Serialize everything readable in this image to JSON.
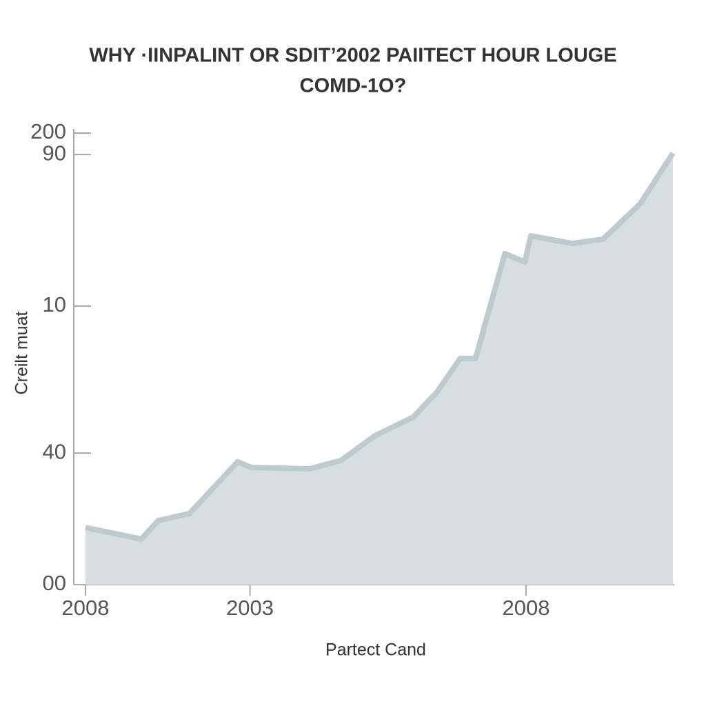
{
  "chart_data": {
    "type": "area",
    "title": [
      "WHY ·IINPALINT OR SDIT’2002 PAIITECT HOUR LOUGE",
      "COMD-1O?"
    ],
    "x_label": "Partect Cand",
    "y_label": "Creilt muat",
    "x": [
      0,
      9.5,
      12.4,
      17.7,
      25.9,
      28.2,
      38.2,
      43.5,
      49.3,
      55.8,
      59.9,
      63.8,
      66.4,
      71.4,
      74.8,
      75.8,
      82.9,
      88.1,
      94.5,
      100
    ],
    "values": [
      25.3,
      20.2,
      28.4,
      31.5,
      54.4,
      51.9,
      51.3,
      55.0,
      66.0,
      74.2,
      85.5,
      100.2,
      100.2,
      146.6,
      142.9,
      154.5,
      151.1,
      153.0,
      168.9,
      191.1
    ],
    "color": "#d6dee2",
    "line_color": "#bfcacf",
    "xlim": [
      0,
      100
    ],
    "xticks": [
      {
        "value": 0,
        "label": "2008"
      },
      {
        "value": 28,
        "label": "2003"
      },
      {
        "value": 75,
        "label": "2008"
      }
    ],
    "ylim": [
      0,
      200
    ],
    "yticks": [
      {
        "value": 0,
        "label": "00"
      },
      {
        "value": 58.3,
        "label": "40"
      },
      {
        "value": 123.4,
        "label": "10"
      },
      {
        "value": 190.5,
        "label": "90"
      },
      200
    ]
  }
}
